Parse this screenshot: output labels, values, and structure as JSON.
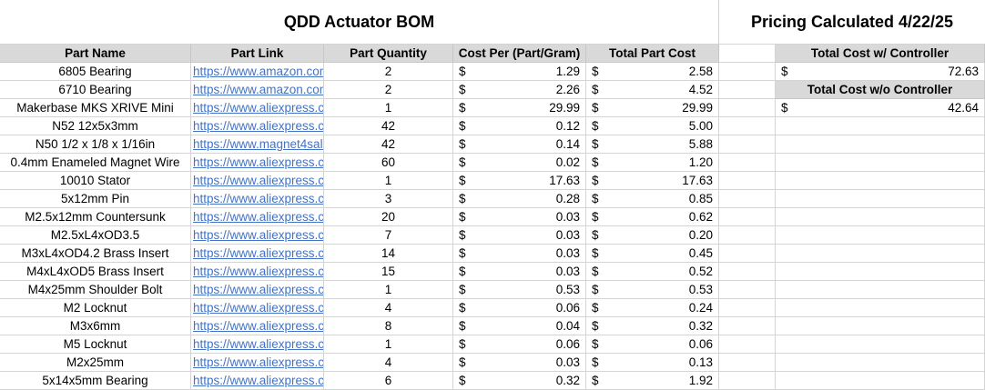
{
  "bom": {
    "title": "QDD Actuator BOM",
    "headers": {
      "part_name": "Part Name",
      "part_link": "Part Link",
      "quantity": "Part Quantity",
      "cost_per": "Cost Per (Part/Gram)",
      "total_cost": "Total Part Cost"
    },
    "currency": "$",
    "rows": [
      {
        "name": "6805 Bearing",
        "link": "https://www.amazon.com",
        "qty": "2",
        "cost": "1.29",
        "total": "2.58"
      },
      {
        "name": "6710 Bearing",
        "link": "https://www.amazon.com",
        "qty": "2",
        "cost": "2.26",
        "total": "4.52"
      },
      {
        "name": "Makerbase  MKS XRIVE Mini",
        "link": "https://www.aliexpress.com",
        "qty": "1",
        "cost": "29.99",
        "total": "29.99"
      },
      {
        "name": "N52 12x5x3mm",
        "link": "https://www.aliexpress.com",
        "qty": "42",
        "cost": "0.12",
        "total": "5.00"
      },
      {
        "name": "N50 1/2 x 1/8 x 1/16in",
        "link": "https://www.magnet4sale.com",
        "qty": "42",
        "cost": "0.14",
        "total": "5.88"
      },
      {
        "name": "0.4mm Enameled Magnet Wire",
        "link": "https://www.aliexpress.com",
        "qty": "60",
        "cost": "0.02",
        "total": "1.20"
      },
      {
        "name": "10010 Stator",
        "link": "https://www.aliexpress.com",
        "qty": "1",
        "cost": "17.63",
        "total": "17.63"
      },
      {
        "name": "5x12mm Pin",
        "link": "https://www.aliexpress.com",
        "qty": "3",
        "cost": "0.28",
        "total": "0.85"
      },
      {
        "name": "M2.5x12mm Countersunk",
        "link": "https://www.aliexpress.com",
        "qty": "20",
        "cost": "0.03",
        "total": "0.62"
      },
      {
        "name": "M2.5xL4xOD3.5",
        "link": "https://www.aliexpress.com",
        "qty": "7",
        "cost": "0.03",
        "total": "0.20"
      },
      {
        "name": "M3xL4xOD4.2 Brass Insert",
        "link": "https://www.aliexpress.com",
        "qty": "14",
        "cost": "0.03",
        "total": "0.45"
      },
      {
        "name": "M4xL4xOD5 Brass Insert",
        "link": "https://www.aliexpress.com",
        "qty": "15",
        "cost": "0.03",
        "total": "0.52"
      },
      {
        "name": "M4x25mm Shoulder Bolt",
        "link": "https://www.aliexpress.com",
        "qty": "1",
        "cost": "0.53",
        "total": "0.53"
      },
      {
        "name": "M2 Locknut",
        "link": "https://www.aliexpress.com",
        "qty": "4",
        "cost": "0.06",
        "total": "0.24"
      },
      {
        "name": "M3x6mm",
        "link": "https://www.aliexpress.com",
        "qty": "8",
        "cost": "0.04",
        "total": "0.32"
      },
      {
        "name": "M5 Locknut",
        "link": "https://www.aliexpress.com",
        "qty": "1",
        "cost": "0.06",
        "total": "0.06"
      },
      {
        "name": "M2x25mm",
        "link": "https://www.aliexpress.com",
        "qty": "4",
        "cost": "0.03",
        "total": "0.13"
      },
      {
        "name": "5x14x5mm Bearing",
        "link": "https://www.aliexpress.com",
        "qty": "6",
        "cost": "0.32",
        "total": "1.92"
      }
    ]
  },
  "pricing": {
    "title": "Pricing Calculated 4/22/25",
    "with_controller_label": "Total Cost w/ Controller",
    "with_controller_value": "72.63",
    "without_controller_label": "Total Cost w/o Controller",
    "without_controller_value": "42.64"
  }
}
